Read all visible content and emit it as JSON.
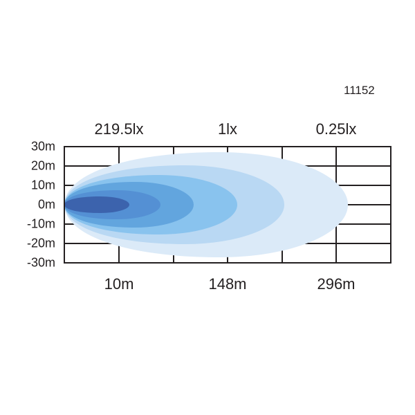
{
  "product_code": "11152",
  "lux_labels": [
    "219.5lx",
    "1lx",
    "0.25lx"
  ],
  "y_axis_labels": [
    "30m",
    "20m",
    "10m",
    "0m",
    "-10m",
    "-20m",
    "-30m"
  ],
  "x_axis_labels": [
    "10m",
    "148m",
    "296m"
  ],
  "beam_colors": [
    "#dbeaf8",
    "#b9d8f3",
    "#89c3ee",
    "#62a5de",
    "#5490d4",
    "#3c63ad"
  ]
}
